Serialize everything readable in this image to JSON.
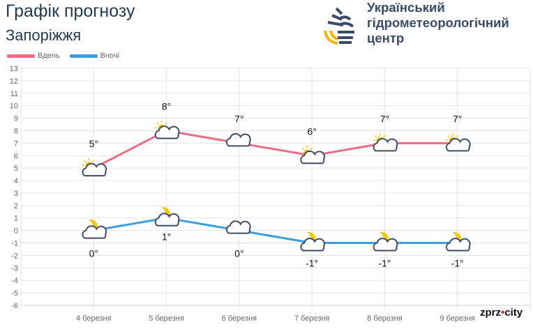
{
  "header": {
    "title": "Графік прогнозу",
    "city": "Запоріжжя"
  },
  "org": {
    "line1": "Український",
    "line2": "гідрометеорологічний",
    "line3": "центр"
  },
  "brand": {
    "left": "zprz",
    "dot": "•",
    "right": "city"
  },
  "colors": {
    "day": "#f06a86",
    "night": "#3a9ee0",
    "grid": "#e3e3e3",
    "text": "#666666"
  },
  "chart_data": {
    "type": "line",
    "categories": [
      "4 березня",
      "5 березня",
      "6 березня",
      "7 березня",
      "8 березня",
      "9 березня"
    ],
    "series": [
      {
        "name": "Вдень",
        "values": [
          5,
          8,
          7,
          6,
          7,
          7
        ],
        "labels": [
          "5°",
          "8°",
          "7°",
          "6°",
          "7°",
          "7°"
        ],
        "icons": [
          "sun-cloud",
          "sun-cloud",
          "cloud",
          "sun-cloud",
          "sun-cloud",
          "sun-cloud"
        ]
      },
      {
        "name": "Вночі",
        "values": [
          0,
          1,
          0,
          -1,
          -1,
          -1
        ],
        "labels": [
          "0°",
          "1°",
          "0°",
          "-1°",
          "-1°",
          "-1°"
        ],
        "icons": [
          "moon-cloud",
          "moon-cloud",
          "cloud",
          "moon-cloud",
          "moon-cloud",
          "moon-cloud"
        ]
      }
    ],
    "ylim": [
      -6,
      13
    ],
    "yticks": [
      13,
      12,
      11,
      10,
      9,
      8,
      7,
      6,
      5,
      4,
      3,
      2,
      1,
      0,
      -1,
      -2,
      -3,
      -4,
      -5,
      -6
    ],
    "grid": true,
    "legend": "top-left"
  }
}
